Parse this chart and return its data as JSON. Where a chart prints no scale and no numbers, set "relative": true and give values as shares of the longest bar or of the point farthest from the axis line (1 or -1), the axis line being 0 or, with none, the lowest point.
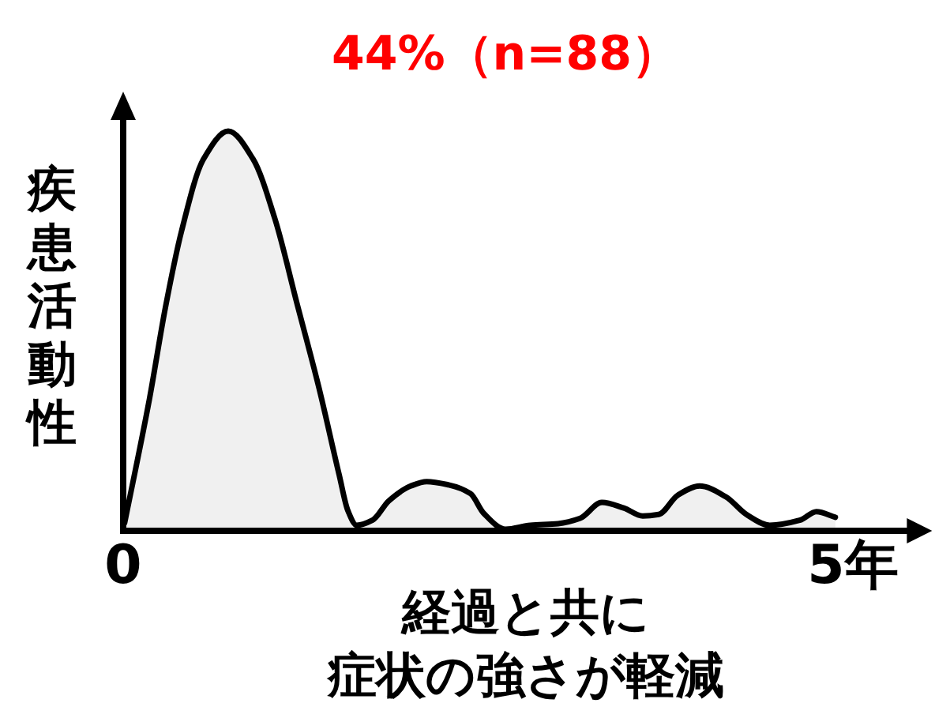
{
  "chart_data": {
    "type": "area",
    "title": "44%（n=88）",
    "xlabel": "経過と共に症状の強さが軽減",
    "ylabel": "疾患活動性",
    "relative": true,
    "xlim": [
      0,
      5.5
    ],
    "xticks": [
      0,
      {
        "value": 5,
        "label": "5年"
      }
    ],
    "x": [
      0.01,
      0.18,
      0.29,
      0.4,
      0.55,
      0.72,
      0.89,
      1.04,
      1.19,
      1.34,
      1.48,
      1.54,
      1.6,
      1.71,
      1.82,
      1.97,
      2.08,
      2.23,
      2.38,
      2.47,
      2.62,
      2.79,
      2.98,
      3.13,
      3.28,
      3.43,
      3.56,
      3.67,
      3.8,
      3.95,
      4.13,
      4.27,
      4.43,
      4.64,
      4.75,
      4.88
    ],
    "series": [
      {
        "color": "#000000",
        "values": [
          0.02,
          0.33,
          0.56,
          0.75,
          0.93,
          1.0,
          0.93,
          0.78,
          0.57,
          0.36,
          0.14,
          0.05,
          0.014,
          0.027,
          0.075,
          0.112,
          0.123,
          0.115,
          0.093,
          0.044,
          0.004,
          0.014,
          0.018,
          0.031,
          0.071,
          0.057,
          0.037,
          0.041,
          0.089,
          0.112,
          0.085,
          0.041,
          0.014,
          0.027,
          0.048,
          0.034
        ]
      }
    ]
  }
}
